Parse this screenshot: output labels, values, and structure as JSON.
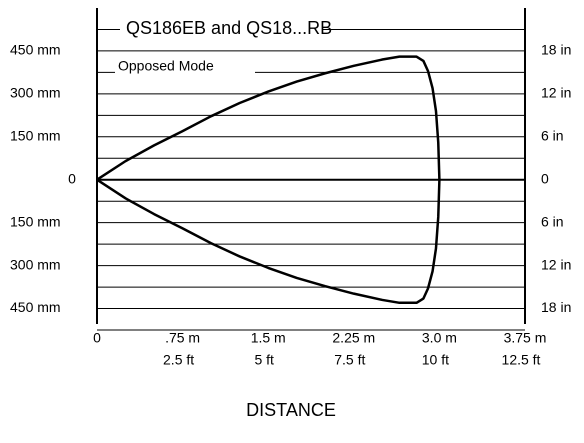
{
  "chart_data": {
    "type": "line",
    "title": "QS186EB and QS18...RB",
    "subtitle": "Opposed Mode",
    "xlabel": "DISTANCE",
    "xlim": [
      0,
      3.75
    ],
    "xticks": [
      0,
      {
        "value": 0.75,
        "label": ".75 m"
      },
      {
        "value": 1.5,
        "label": "1.5 m"
      },
      {
        "value": 2.25,
        "label": "2.25 m"
      },
      {
        "value": 3.0,
        "label": "3.0 m"
      },
      {
        "value": 3.75,
        "label": "3.75 m"
      }
    ],
    "x2ticks": [
      {
        "value": 0.75,
        "label": "2.5 ft"
      },
      {
        "value": 1.5,
        "label": "5 ft"
      },
      {
        "value": 2.25,
        "label": "7.5 ft"
      },
      {
        "value": 3.0,
        "label": "10 ft"
      },
      {
        "value": 3.75,
        "label": "12.5 ft"
      }
    ],
    "ylim": [
      -525,
      600
    ],
    "yticks": [
      {
        "value": 450,
        "label": "450 mm"
      },
      {
        "value": 300,
        "label": "300 mm"
      },
      {
        "value": 150,
        "label": "150 mm"
      },
      0,
      {
        "value": -150,
        "label": "150 mm"
      },
      {
        "value": -300,
        "label": "300 mm"
      },
      {
        "value": -450,
        "label": "450 mm"
      }
    ],
    "y2lim": [
      -21,
      24
    ],
    "y2ticks": [
      {
        "value": 18,
        "label": "18 in"
      },
      {
        "value": 12,
        "label": "12 in"
      },
      {
        "value": 6,
        "label": "6 in"
      },
      0,
      {
        "value": -6,
        "label": "6 in"
      },
      {
        "value": -12,
        "label": "12 in"
      },
      {
        "value": -18,
        "label": "18 in"
      }
    ],
    "grid": true,
    "grid_step": 75,
    "series": [
      {
        "color": "#000000",
        "x": [
          0,
          0.25,
          0.5,
          0.75,
          1.0,
          1.25,
          1.5,
          1.75,
          2.0,
          2.25,
          2.5,
          2.65,
          2.8,
          2.86,
          2.9,
          2.94,
          2.97,
          2.99,
          3.0,
          2.99,
          2.97,
          2.94,
          2.9,
          2.86,
          2.8,
          2.65,
          2.5,
          2.25,
          2.0,
          1.75,
          1.5,
          1.25,
          1.0,
          0.75,
          0.5,
          0.25,
          0
        ],
        "values": [
          0,
          65,
          120,
          170,
          222,
          268,
          308,
          343,
          372,
          398,
          420,
          430,
          430,
          415,
          380,
          320,
          240,
          130,
          0,
          -130,
          -240,
          -320,
          -380,
          -415,
          -430,
          -430,
          -420,
          -398,
          -372,
          -343,
          -308,
          -268,
          -222,
          -170,
          -120,
          -65,
          0
        ]
      }
    ]
  }
}
